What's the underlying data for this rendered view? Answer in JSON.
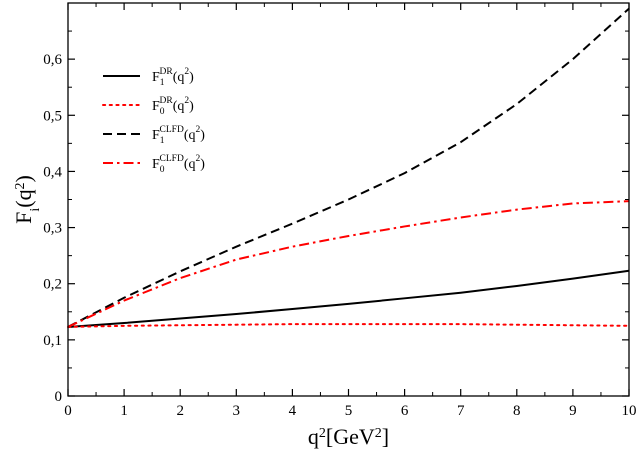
{
  "chart_data": {
    "type": "line",
    "xlabel": {
      "base": "q",
      "sup": "2",
      "unit_open": "[GeV",
      "unit_sup": "2",
      "unit_close": "]"
    },
    "ylabel": {
      "base": "F",
      "sub": "i",
      "arg_open": "(q",
      "arg_sup": "2",
      "arg_close": ")"
    },
    "xlim": [
      0,
      10
    ],
    "ylim": [
      0,
      0.7
    ],
    "xticks": [
      "0",
      "1",
      "2",
      "3",
      "4",
      "5",
      "6",
      "7",
      "8",
      "9",
      "10"
    ],
    "yticks": [
      "0",
      "0,1",
      "0,2",
      "0,3",
      "0,4",
      "0,5",
      "0,6"
    ],
    "ytick_values": [
      0,
      0.1,
      0.2,
      0.3,
      0.4,
      0.5,
      0.6
    ],
    "grid": false,
    "legend_position": "top-left",
    "x": [
      0,
      1,
      2,
      3,
      4,
      5,
      6,
      7,
      8,
      9,
      10
    ],
    "series": [
      {
        "legend": {
          "base": "F",
          "sub": "1",
          "sup": "DR",
          "arg_open": "(q",
          "arg_sup": "2",
          "arg_close": ")"
        },
        "color": "#000000",
        "dash": "solid",
        "values": [
          0.123,
          0.13,
          0.138,
          0.146,
          0.155,
          0.164,
          0.174,
          0.184,
          0.196,
          0.209,
          0.223
        ]
      },
      {
        "legend": {
          "base": "F",
          "sub": "0",
          "sup": "DR",
          "arg_open": "(q",
          "arg_sup": "2",
          "arg_close": ")"
        },
        "color": "#ff0000",
        "dash": "dotted",
        "values": [
          0.123,
          0.125,
          0.126,
          0.127,
          0.128,
          0.128,
          0.128,
          0.128,
          0.127,
          0.126,
          0.125
        ]
      },
      {
        "legend": {
          "base": "F",
          "sub": "1",
          "sup": "CLFD",
          "arg_open": "(q",
          "arg_sup": "2",
          "arg_close": ")"
        },
        "color": "#000000",
        "dash": "dashed",
        "values": [
          0.123,
          0.175,
          0.222,
          0.266,
          0.307,
          0.35,
          0.397,
          0.452,
          0.52,
          0.6,
          0.69
        ]
      },
      {
        "legend": {
          "base": "F",
          "sub": "0",
          "sup": "CLFD",
          "arg_open": "(q",
          "arg_sup": "2",
          "arg_close": ")"
        },
        "color": "#ff0000",
        "dash": "dashdot",
        "values": [
          0.123,
          0.17,
          0.21,
          0.243,
          0.266,
          0.285,
          0.302,
          0.318,
          0.332,
          0.343,
          0.347
        ]
      }
    ]
  }
}
